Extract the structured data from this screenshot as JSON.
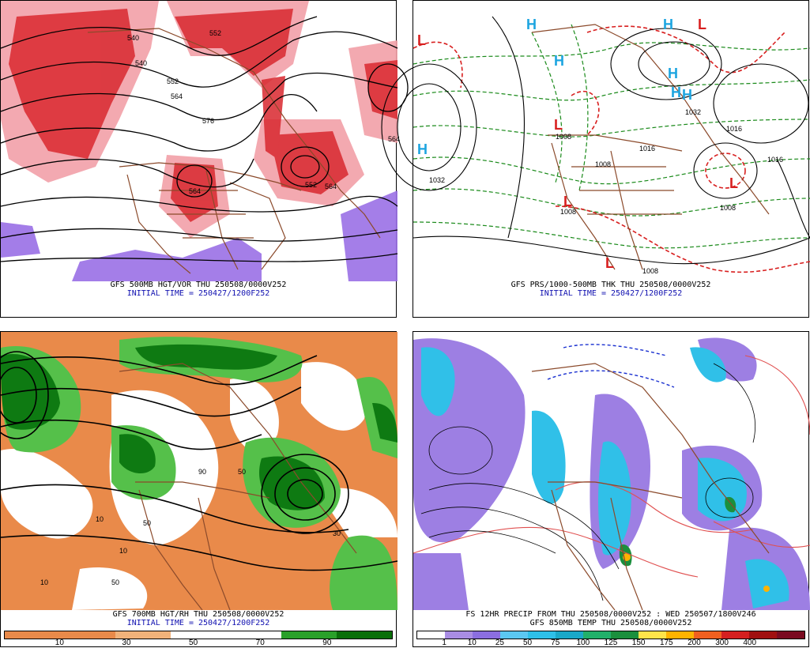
{
  "panels": {
    "tl": {
      "caption": "GFS 500MB HGT/VOR THU 250508/0000V252",
      "init": "INITIAL TIME = 250427/1200F252",
      "contour_labels": [
        "540",
        "552",
        "564",
        "576",
        "540",
        "552",
        "564",
        "564",
        "552",
        "564"
      ],
      "colors": {
        "vort_red": "#d9282f",
        "vort_pink": "#f2a0a8",
        "neg_purple": "#9a70e6",
        "contour": "#000000",
        "border": "#8b4a2b"
      }
    },
    "tr": {
      "caption": "GFS PRS/1000-500MB THK THU 250508/0000V252",
      "init": "INITIAL TIME = 250427/1200F252",
      "highs": [
        "H",
        "H",
        "H",
        "H",
        "H",
        "H",
        "H"
      ],
      "lows": [
        "L",
        "L",
        "L",
        "L",
        "L",
        "L"
      ],
      "isobar_labels": [
        "1032",
        "1008",
        "1008",
        "1008",
        "1016",
        "1008",
        "1032",
        "1016",
        "1016",
        "1008"
      ],
      "colors": {
        "high": "#1da5e0",
        "low": "#d81f1f",
        "thick_green": "#1a8a1a",
        "thick_red": "#d81f1f",
        "isobar": "#000000"
      }
    },
    "bl": {
      "caption": "GFS 700MB HGT/RH THU 250508/0000V252",
      "init": "INITIAL TIME = 250427/1200F252",
      "colorbar": {
        "colors": [
          "#e98a4a",
          "#e98a4a",
          "#f1b27a",
          "#ffffff",
          "#ffffff",
          "#2aa02a",
          "#0a6f0a"
        ],
        "labels": [
          "10",
          "30",
          "50",
          "70",
          "90"
        ]
      },
      "contour_labels": [
        "10",
        "50",
        "90",
        "10",
        "50",
        "30",
        "10",
        "50"
      ],
      "colors": {
        "dry": "#e98a4a",
        "moist_light": "#55c04a",
        "moist_dark": "#0e7a12",
        "contour": "#000000"
      }
    },
    "br": {
      "caption": "FS 12HR PRECIP FROM THU 250508/0000V252 : WED 250507/1800V246",
      "caption2": "GFS 850MB TEMP THU 250508/0000V252",
      "colorbar": {
        "colors": [
          "#ffffff",
          "#a98de3",
          "#8b6ee0",
          "#5bc8f2",
          "#2ec0e8",
          "#1aa8c8",
          "#22b06a",
          "#1b8f3d",
          "#ffe44a",
          "#ffb300",
          "#f06020",
          "#d52020",
          "#a01010",
          "#7a0a20"
        ],
        "labels": [
          "1",
          "10",
          "25",
          "50",
          "75",
          "100",
          "125",
          "150",
          "175",
          "200",
          "300",
          "400"
        ]
      },
      "colors": {
        "precip_light": "#9d7fe3",
        "precip_mid": "#30c0e8",
        "temp_red": "#e05050",
        "temp_blue": "#1a30d0",
        "border": "#8b4a2b"
      }
    }
  }
}
